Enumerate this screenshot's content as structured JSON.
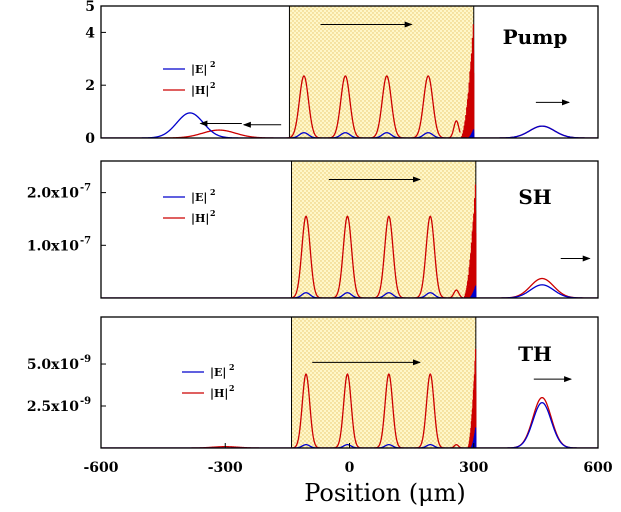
{
  "chart_data": [
    {
      "type": "line",
      "panel_label": "Pump",
      "xlim": [
        -600,
        600
      ],
      "ylim": [
        0,
        5
      ],
      "y_ticks": [
        {
          "v": 0,
          "label": "0"
        },
        {
          "v": 2,
          "label": "2"
        },
        {
          "v": 4,
          "label": "4"
        },
        {
          "v": 5,
          "label": "5"
        }
      ],
      "shaded_region": [
        -145,
        300
      ],
      "legend": [
        {
          "label": "|E|",
          "sup": "2",
          "color": "#0000cc"
        },
        {
          "label": "|H|",
          "sup": "2",
          "color": "#cc0000"
        }
      ],
      "arrows": [
        {
          "x1": -70,
          "x2": 150,
          "y": 4.3
        },
        {
          "x1": -260,
          "x2": -360,
          "y": 0.55
        },
        {
          "x1": -165,
          "x2": -255,
          "y": 0.5
        },
        {
          "x1": 450,
          "x2": 530,
          "y": 1.35
        }
      ],
      "series": [
        {
          "color": "#cc0000",
          "peaks": [
            {
              "x": -315,
              "amp": 0.3,
              "sigma": 40
            },
            {
              "x": -110,
              "amp": 2.35,
              "sigma": 11
            },
            {
              "x": -10,
              "amp": 2.35,
              "sigma": 11
            },
            {
              "x": 90,
              "amp": 2.35,
              "sigma": 11
            },
            {
              "x": 190,
              "amp": 2.35,
              "sigma": 11
            },
            {
              "x": 258,
              "amp": 0.65,
              "sigma": 6
            },
            {
              "x": 465,
              "amp": 0.45,
              "sigma": 30
            }
          ],
          "burst": {
            "x0": 268,
            "x1": 300,
            "max": 4.6
          }
        },
        {
          "color": "#0000cc",
          "peaks": [
            {
              "x": -385,
              "amp": 0.95,
              "sigma": 32
            },
            {
              "x": -110,
              "amp": 0.2,
              "sigma": 11
            },
            {
              "x": -10,
              "amp": 0.2,
              "sigma": 11
            },
            {
              "x": 90,
              "amp": 0.2,
              "sigma": 11
            },
            {
              "x": 190,
              "amp": 0.2,
              "sigma": 11
            },
            {
              "x": 465,
              "amp": 0.45,
              "sigma": 30
            }
          ],
          "burst": {
            "x0": 285,
            "x1": 300,
            "max": 0.35
          }
        }
      ]
    },
    {
      "type": "line",
      "panel_label": "SH",
      "xlim": [
        -600,
        600
      ],
      "ylim": [
        0,
        2.6e-07
      ],
      "y_ticks": [
        {
          "v": 1e-07,
          "label": "1.0x10",
          "exp": "-7"
        },
        {
          "v": 2e-07,
          "label": "2.0x10",
          "exp": "-7"
        }
      ],
      "shaded_region": [
        -140,
        305
      ],
      "legend": [
        {
          "label": "|E|",
          "sup": "2",
          "color": "#0000cc"
        },
        {
          "label": "|H|",
          "sup": "2",
          "color": "#cc0000"
        }
      ],
      "arrows": [
        {
          "x1": -50,
          "x2": 170,
          "y": 2.25e-07
        },
        {
          "x1": 510,
          "x2": 580,
          "y": 7.5e-08
        }
      ],
      "series": [
        {
          "color": "#cc0000",
          "peaks": [
            {
              "x": -105,
              "amp": 1.55e-07,
              "sigma": 10
            },
            {
              "x": -5,
              "amp": 1.55e-07,
              "sigma": 10
            },
            {
              "x": 95,
              "amp": 1.55e-07,
              "sigma": 10
            },
            {
              "x": 195,
              "amp": 1.55e-07,
              "sigma": 10
            },
            {
              "x": 258,
              "amp": 1.5e-08,
              "sigma": 6
            },
            {
              "x": 465,
              "amp": 3.7e-08,
              "sigma": 28
            }
          ],
          "burst": {
            "x0": 275,
            "x1": 305,
            "max": 2.3e-07
          }
        },
        {
          "color": "#0000cc",
          "peaks": [
            {
              "x": -105,
              "amp": 1e-08,
              "sigma": 10
            },
            {
              "x": -5,
              "amp": 1e-08,
              "sigma": 10
            },
            {
              "x": 95,
              "amp": 1e-08,
              "sigma": 10
            },
            {
              "x": 195,
              "amp": 1e-08,
              "sigma": 10
            },
            {
              "x": 465,
              "amp": 2.5e-08,
              "sigma": 28
            }
          ],
          "burst": {
            "x0": 288,
            "x1": 305,
            "max": 2.5e-08
          }
        }
      ]
    },
    {
      "type": "line",
      "panel_label": "TH",
      "xlim": [
        -600,
        600
      ],
      "ylim": [
        0,
        7.8e-09
      ],
      "y_ticks": [
        {
          "v": 2.5e-09,
          "label": "2.5x10",
          "exp": "-9"
        },
        {
          "v": 5e-09,
          "label": "5.0x10",
          "exp": "-9"
        }
      ],
      "x_ticks": [
        {
          "v": -600,
          "label": "-600"
        },
        {
          "v": -300,
          "label": "-300"
        },
        {
          "v": 0,
          "label": "0"
        },
        {
          "v": 300,
          "label": "300"
        },
        {
          "v": 600,
          "label": "600"
        }
      ],
      "shaded_region": [
        -140,
        305
      ],
      "legend": [
        {
          "label": "|E|",
          "sup": "2",
          "color": "#0000cc"
        },
        {
          "label": "|H|",
          "sup": "2",
          "color": "#cc0000"
        }
      ],
      "arrows": [
        {
          "x1": -90,
          "x2": 170,
          "y": 5.1e-09
        },
        {
          "x1": 445,
          "x2": 535,
          "y": 4.1e-09
        }
      ],
      "series": [
        {
          "color": "#cc0000",
          "peaks": [
            {
              "x": -300,
              "amp": 8e-11,
              "sigma": 30
            },
            {
              "x": -105,
              "amp": 4.4e-09,
              "sigma": 9
            },
            {
              "x": -5,
              "amp": 4.4e-09,
              "sigma": 9
            },
            {
              "x": 95,
              "amp": 4.4e-09,
              "sigma": 9
            },
            {
              "x": 195,
              "amp": 4.4e-09,
              "sigma": 9
            },
            {
              "x": 258,
              "amp": 2e-10,
              "sigma": 5
            },
            {
              "x": 465,
              "amp": 3e-09,
              "sigma": 22
            }
          ],
          "burst": {
            "x0": 285,
            "x1": 305,
            "max": 6.3e-09
          }
        },
        {
          "color": "#0000cc",
          "peaks": [
            {
              "x": -105,
              "amp": 2e-10,
              "sigma": 9
            },
            {
              "x": -5,
              "amp": 2e-10,
              "sigma": 9
            },
            {
              "x": 95,
              "amp": 2e-10,
              "sigma": 9
            },
            {
              "x": 195,
              "amp": 2e-10,
              "sigma": 9
            },
            {
              "x": 465,
              "amp": 2.7e-09,
              "sigma": 22
            }
          ],
          "burst": {
            "x0": 292,
            "x1": 305,
            "max": 1.3e-09
          }
        }
      ]
    }
  ],
  "xlabel": "Position (μm)"
}
